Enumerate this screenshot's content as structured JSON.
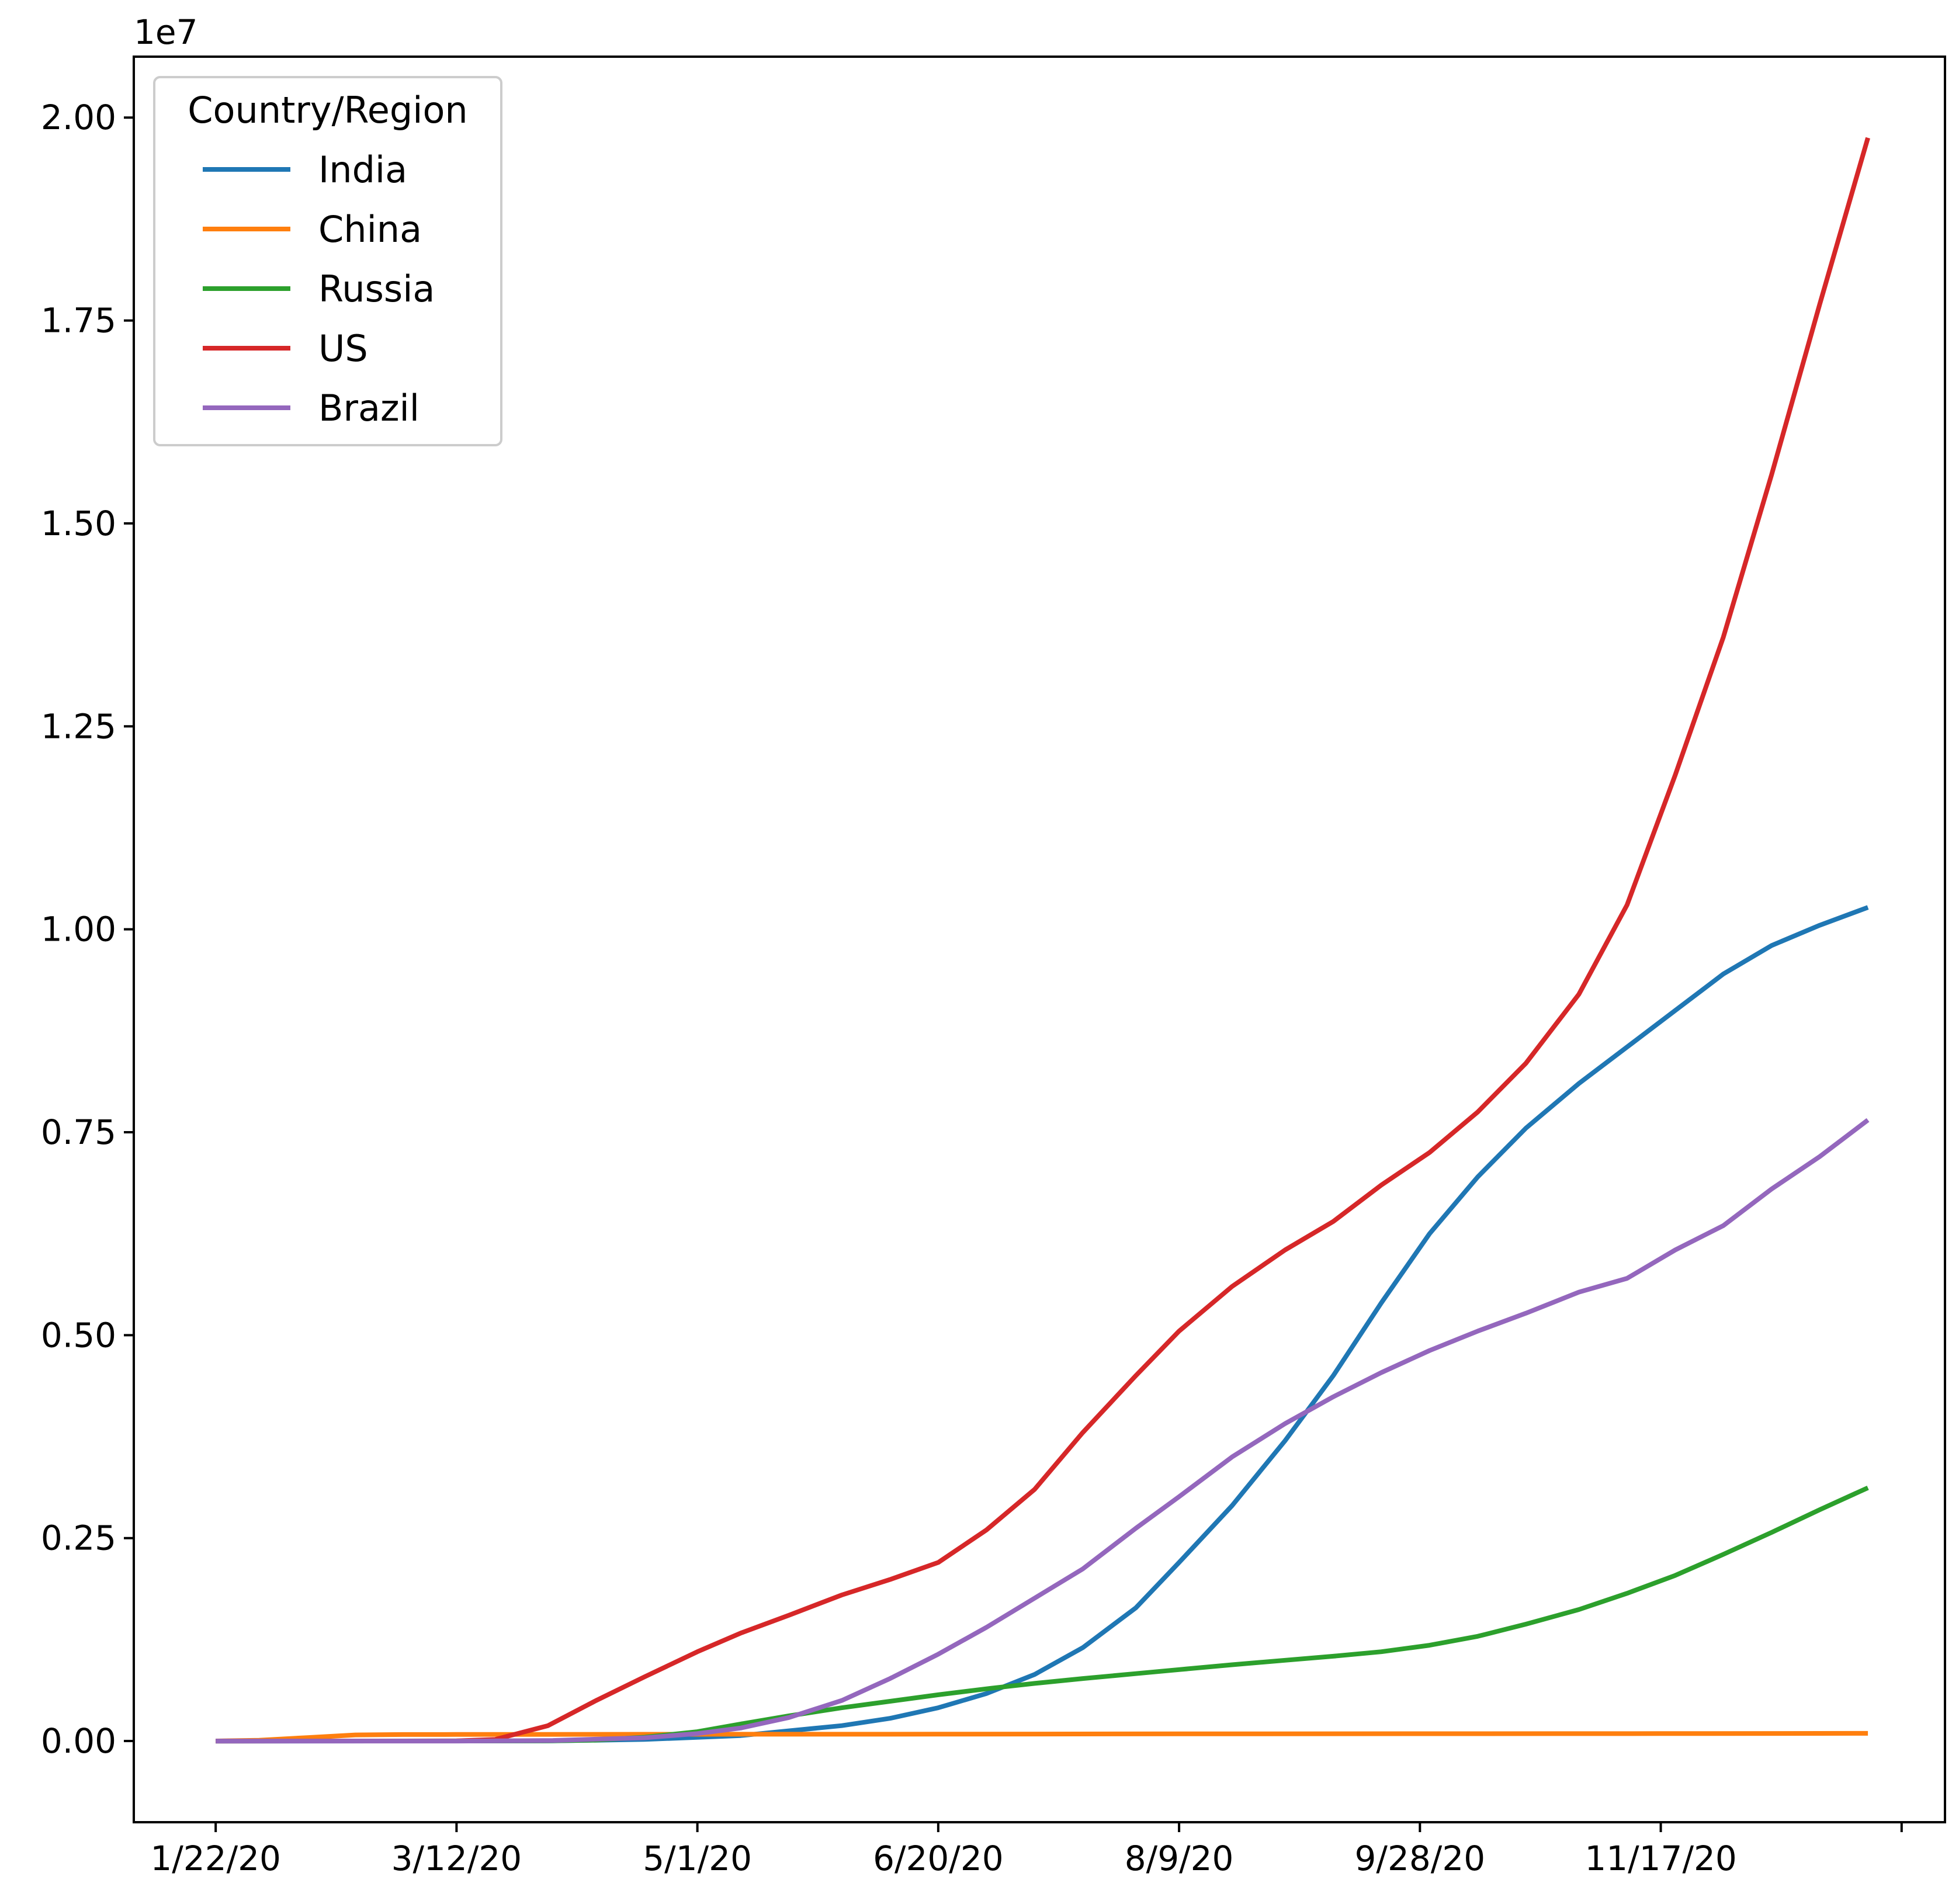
{
  "chart_data": {
    "type": "line",
    "title": "",
    "xlabel": "",
    "ylabel": "",
    "y_offset_text": "1e7",
    "x_tick_labels": [
      "1/22/20",
      "3/12/20",
      "5/1/20",
      "6/20/20",
      "8/9/20",
      "9/28/20",
      "11/17/20",
      ""
    ],
    "x_ticks": [
      "2020-01-22",
      "2020-03-12",
      "2020-05-01",
      "2020-06-20",
      "2020-08-09",
      "2020-09-28",
      "2020-11-17",
      "2021-01-06"
    ],
    "xlim": [
      "2020-01-05",
      "2021-01-15"
    ],
    "y_tick_labels": [
      "0.00",
      "0.25",
      "0.50",
      "0.75",
      "1.00",
      "1.25",
      "1.50",
      "1.75",
      "2.00"
    ],
    "y_ticks": [
      0,
      2500000,
      5000000,
      7500000,
      10000000,
      12500000,
      15000000,
      17500000,
      20000000
    ],
    "ylim": [
      -1000000,
      20750000
    ],
    "legend": {
      "title": "Country/Region",
      "position": "top-left"
    },
    "series": [
      {
        "name": "India",
        "color": "#1f77b4",
        "points": [
          [
            "2020-01-22",
            0
          ],
          [
            "2020-03-12",
            100
          ],
          [
            "2020-04-01",
            2000
          ],
          [
            "2020-04-20",
            20000
          ],
          [
            "2020-05-10",
            67000
          ],
          [
            "2020-05-31",
            190000
          ],
          [
            "2020-06-10",
            280000
          ],
          [
            "2020-06-20",
            410000
          ],
          [
            "2020-06-30",
            585000
          ],
          [
            "2020-07-10",
            820000
          ],
          [
            "2020-07-20",
            1150000
          ],
          [
            "2020-07-31",
            1640000
          ],
          [
            "2020-08-09",
            2200000
          ],
          [
            "2020-08-20",
            2900000
          ],
          [
            "2020-08-31",
            3700000
          ],
          [
            "2020-09-10",
            4500000
          ],
          [
            "2020-09-20",
            5400000
          ],
          [
            "2020-09-30",
            6250000
          ],
          [
            "2020-10-10",
            6950000
          ],
          [
            "2020-10-20",
            7550000
          ],
          [
            "2020-10-31",
            8100000
          ],
          [
            "2020-11-10",
            8550000
          ],
          [
            "2020-11-20",
            9000000
          ],
          [
            "2020-11-30",
            9450000
          ],
          [
            "2020-12-10",
            9800000
          ],
          [
            "2020-12-20",
            10050000
          ],
          [
            "2020-12-30",
            10270000
          ]
        ]
      },
      {
        "name": "China",
        "color": "#ff7f0e",
        "points": [
          [
            "2020-01-22",
            550
          ],
          [
            "2020-01-31",
            10000
          ],
          [
            "2020-02-10",
            42000
          ],
          [
            "2020-02-20",
            75000
          ],
          [
            "2020-03-01",
            80000
          ],
          [
            "2020-03-12",
            81000
          ],
          [
            "2020-04-20",
            83000
          ],
          [
            "2020-06-20",
            84500
          ],
          [
            "2020-08-09",
            88000
          ],
          [
            "2020-09-28",
            90500
          ],
          [
            "2020-11-17",
            92000
          ],
          [
            "2020-12-30",
            95000
          ]
        ]
      },
      {
        "name": "Russia",
        "color": "#2ca02c",
        "points": [
          [
            "2020-01-22",
            0
          ],
          [
            "2020-03-31",
            2000
          ],
          [
            "2020-04-10",
            12000
          ],
          [
            "2020-04-20",
            47000
          ],
          [
            "2020-05-01",
            115000
          ],
          [
            "2020-05-10",
            210000
          ],
          [
            "2020-05-20",
            310000
          ],
          [
            "2020-05-31",
            410000
          ],
          [
            "2020-06-10",
            490000
          ],
          [
            "2020-06-20",
            570000
          ],
          [
            "2020-07-01",
            650000
          ],
          [
            "2020-07-10",
            710000
          ],
          [
            "2020-07-20",
            770000
          ],
          [
            "2020-07-31",
            830000
          ],
          [
            "2020-08-09",
            880000
          ],
          [
            "2020-08-20",
            940000
          ],
          [
            "2020-08-31",
            995000
          ],
          [
            "2020-09-10",
            1045000
          ],
          [
            "2020-09-20",
            1100000
          ],
          [
            "2020-09-30",
            1180000
          ],
          [
            "2020-10-10",
            1290000
          ],
          [
            "2020-10-20",
            1440000
          ],
          [
            "2020-10-31",
            1620000
          ],
          [
            "2020-11-10",
            1820000
          ],
          [
            "2020-11-20",
            2040000
          ],
          [
            "2020-11-30",
            2300000
          ],
          [
            "2020-12-10",
            2570000
          ],
          [
            "2020-12-20",
            2850000
          ],
          [
            "2020-12-30",
            3120000
          ]
        ]
      },
      {
        "name": "US",
        "color": "#d62728",
        "points": [
          [
            "2020-01-22",
            1
          ],
          [
            "2020-03-01",
            70
          ],
          [
            "2020-03-12",
            1600
          ],
          [
            "2020-03-20",
            19000
          ],
          [
            "2020-03-31",
            190000
          ],
          [
            "2020-04-10",
            500000
          ],
          [
            "2020-04-20",
            790000
          ],
          [
            "2020-05-01",
            1100000
          ],
          [
            "2020-05-10",
            1330000
          ],
          [
            "2020-05-20",
            1550000
          ],
          [
            "2020-05-31",
            1800000
          ],
          [
            "2020-06-10",
            1990000
          ],
          [
            "2020-06-20",
            2200000
          ],
          [
            "2020-06-30",
            2600000
          ],
          [
            "2020-07-10",
            3100000
          ],
          [
            "2020-07-20",
            3800000
          ],
          [
            "2020-07-31",
            4500000
          ],
          [
            "2020-08-09",
            5050000
          ],
          [
            "2020-08-20",
            5600000
          ],
          [
            "2020-08-31",
            6050000
          ],
          [
            "2020-09-10",
            6400000
          ],
          [
            "2020-09-20",
            6850000
          ],
          [
            "2020-09-30",
            7250000
          ],
          [
            "2020-10-10",
            7750000
          ],
          [
            "2020-10-20",
            8350000
          ],
          [
            "2020-10-31",
            9200000
          ],
          [
            "2020-11-10",
            10300000
          ],
          [
            "2020-11-20",
            11900000
          ],
          [
            "2020-11-30",
            13600000
          ],
          [
            "2020-12-10",
            15600000
          ],
          [
            "2020-12-20",
            17700000
          ],
          [
            "2020-12-30",
            19750000
          ]
        ]
      },
      {
        "name": "Brazil",
        "color": "#9467bd",
        "points": [
          [
            "2020-01-22",
            0
          ],
          [
            "2020-03-12",
            52
          ],
          [
            "2020-04-01",
            6900
          ],
          [
            "2020-04-20",
            40000
          ],
          [
            "2020-05-01",
            92000
          ],
          [
            "2020-05-10",
            160000
          ],
          [
            "2020-05-20",
            290000
          ],
          [
            "2020-05-31",
            500000
          ],
          [
            "2020-06-10",
            770000
          ],
          [
            "2020-06-20",
            1070000
          ],
          [
            "2020-06-30",
            1400000
          ],
          [
            "2020-07-10",
            1760000
          ],
          [
            "2020-07-20",
            2120000
          ],
          [
            "2020-07-31",
            2620000
          ],
          [
            "2020-08-09",
            3010000
          ],
          [
            "2020-08-20",
            3500000
          ],
          [
            "2020-08-31",
            3910000
          ],
          [
            "2020-09-10",
            4240000
          ],
          [
            "2020-09-20",
            4540000
          ],
          [
            "2020-09-30",
            4810000
          ],
          [
            "2020-10-10",
            5050000
          ],
          [
            "2020-10-20",
            5270000
          ],
          [
            "2020-10-31",
            5530000
          ],
          [
            "2020-11-10",
            5700000
          ],
          [
            "2020-11-20",
            6050000
          ],
          [
            "2020-11-30",
            6350000
          ],
          [
            "2020-12-10",
            6800000
          ],
          [
            "2020-12-20",
            7200000
          ],
          [
            "2020-12-30",
            7650000
          ]
        ]
      }
    ]
  }
}
